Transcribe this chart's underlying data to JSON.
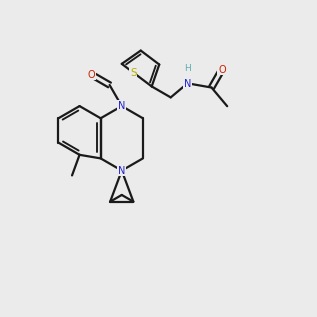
{
  "bg_color": "#ebebeb",
  "bond_color": "#1a1a1a",
  "N_color": "#2020d0",
  "O_color": "#cc2000",
  "S_color": "#b0b000",
  "H_color": "#5aafaf",
  "lw": 1.6
}
